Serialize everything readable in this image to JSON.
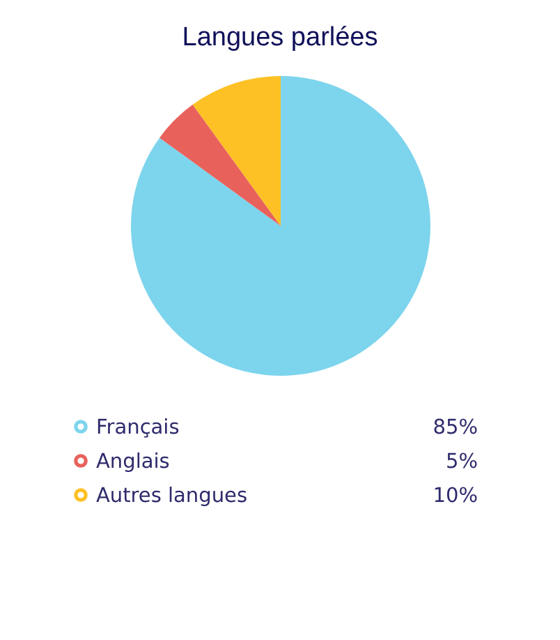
{
  "chart_data": {
    "type": "pie",
    "title": "Langues parlées",
    "categories": [
      "Français",
      "Anglais",
      "Autres langues"
    ],
    "values": [
      85,
      5,
      10
    ],
    "colors": [
      "#7dd4ed",
      "#e8625b",
      "#fdc125"
    ],
    "value_labels": [
      "85%",
      "5%",
      "10%"
    ],
    "legend": "bottom"
  }
}
